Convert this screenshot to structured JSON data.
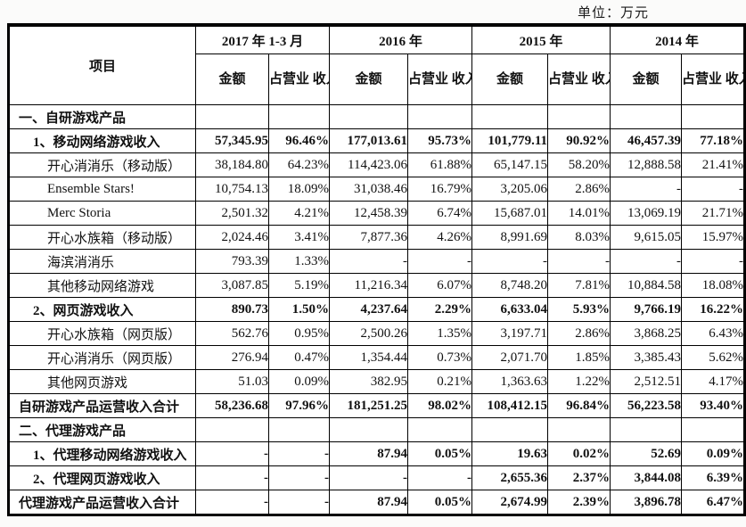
{
  "meta": {
    "unit_label": "单位：万元"
  },
  "table": {
    "item_header": "项目",
    "amount_header": "金额",
    "ratio_header": "占营业\n收入\n比重",
    "year_headers": [
      "2017 年 1-3 月",
      "2016 年",
      "2015 年",
      "2014 年"
    ],
    "rows": [
      {
        "label": "一、自研游戏产品",
        "style": "section",
        "values": [
          "",
          "",
          "",
          "",
          "",
          "",
          "",
          ""
        ]
      },
      {
        "label": "1、移动网络游戏收入",
        "style": "bold-item",
        "values": [
          "57,345.95",
          "96.46%",
          "177,013.61",
          "95.73%",
          "101,779.11",
          "90.92%",
          "46,457.39",
          "77.18%"
        ]
      },
      {
        "label": "开心消消乐（移动版）",
        "style": "item",
        "values": [
          "38,184.80",
          "64.23%",
          "114,423.06",
          "61.88%",
          "65,147.15",
          "58.20%",
          "12,888.58",
          "21.41%"
        ]
      },
      {
        "label": "Ensemble Stars!",
        "style": "item",
        "values": [
          "10,754.13",
          "18.09%",
          "31,038.46",
          "16.79%",
          "3,205.06",
          "2.86%",
          "-",
          "-"
        ]
      },
      {
        "label": "Merc Storia",
        "style": "item",
        "values": [
          "2,501.32",
          "4.21%",
          "12,458.39",
          "6.74%",
          "15,687.01",
          "14.01%",
          "13,069.19",
          "21.71%"
        ]
      },
      {
        "label": "开心水族箱（移动版）",
        "style": "item",
        "values": [
          "2,024.46",
          "3.41%",
          "7,877.36",
          "4.26%",
          "8,991.69",
          "8.03%",
          "9,615.05",
          "15.97%"
        ]
      },
      {
        "label": "海滨消消乐",
        "style": "item",
        "values": [
          "793.39",
          "1.33%",
          "-",
          "-",
          "-",
          "-",
          "-",
          "-"
        ]
      },
      {
        "label": "其他移动网络游戏",
        "style": "item",
        "values": [
          "3,087.85",
          "5.19%",
          "11,216.34",
          "6.07%",
          "8,748.20",
          "7.81%",
          "10,884.58",
          "18.08%"
        ]
      },
      {
        "label": "2、网页游戏收入",
        "style": "bold-item",
        "values": [
          "890.73",
          "1.50%",
          "4,237.64",
          "2.29%",
          "6,633.04",
          "5.93%",
          "9,766.19",
          "16.22%"
        ]
      },
      {
        "label": "开心水族箱（网页版）",
        "style": "item",
        "values": [
          "562.76",
          "0.95%",
          "2,500.26",
          "1.35%",
          "3,197.71",
          "2.86%",
          "3,868.25",
          "6.43%"
        ]
      },
      {
        "label": "开心消消乐（网页版）",
        "style": "item",
        "values": [
          "276.94",
          "0.47%",
          "1,354.44",
          "0.73%",
          "2,071.70",
          "1.85%",
          "3,385.43",
          "5.62%"
        ]
      },
      {
        "label": "其他网页游戏",
        "style": "item",
        "values": [
          "51.03",
          "0.09%",
          "382.95",
          "0.21%",
          "1,363.63",
          "1.22%",
          "2,512.51",
          "4.17%"
        ]
      },
      {
        "label": "自研游戏产品运营收入合计",
        "style": "total",
        "values": [
          "58,236.68",
          "97.96%",
          "181,251.25",
          "98.02%",
          "108,412.15",
          "96.84%",
          "56,223.58",
          "93.40%"
        ]
      },
      {
        "label": "二、代理游戏产品",
        "style": "section",
        "values": [
          "",
          "",
          "",
          "",
          "",
          "",
          "",
          ""
        ]
      },
      {
        "label": "1、代理移动网络游戏收入",
        "style": "bold-item",
        "values": [
          "-",
          "-",
          "87.94",
          "0.05%",
          "19.63",
          "0.02%",
          "52.69",
          "0.09%"
        ]
      },
      {
        "label": "2、代理网页游戏收入",
        "style": "bold-item",
        "values": [
          "-",
          "-",
          "-",
          "-",
          "2,655.36",
          "2.37%",
          "3,844.08",
          "6.39%"
        ]
      },
      {
        "label": "代理游戏产品运营收入合计",
        "style": "total",
        "values": [
          "-",
          "-",
          "87.94",
          "0.05%",
          "2,674.99",
          "2.39%",
          "3,896.78",
          "6.47%"
        ]
      }
    ]
  }
}
